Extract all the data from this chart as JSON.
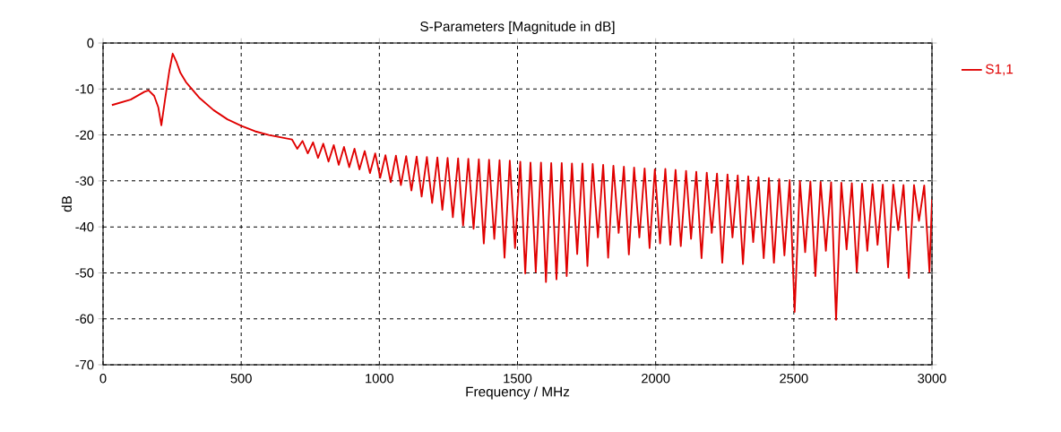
{
  "chart_data": {
    "type": "line",
    "title": "S-Parameters [Magnitude in dB]",
    "xlabel": "Frequency / MHz",
    "ylabel": "dB",
    "x": [
      32,
      100,
      150,
      165,
      185,
      200,
      211,
      225,
      240,
      252,
      265,
      280,
      300,
      350,
      400,
      450,
      500,
      550,
      600,
      650,
      684,
      703,
      722,
      741,
      760,
      778,
      797,
      816,
      835,
      853,
      872,
      891,
      910,
      928,
      947,
      966,
      985,
      1003,
      1022,
      1041,
      1060,
      1078,
      1097,
      1116,
      1135,
      1153,
      1172,
      1191,
      1210,
      1228,
      1247,
      1266,
      1285,
      1303,
      1322,
      1341,
      1360,
      1378,
      1397,
      1416,
      1435,
      1453,
      1472,
      1491,
      1510,
      1528,
      1547,
      1566,
      1585,
      1603,
      1622,
      1641,
      1660,
      1678,
      1697,
      1716,
      1735,
      1753,
      1772,
      1791,
      1810,
      1828,
      1847,
      1866,
      1885,
      1903,
      1922,
      1941,
      1960,
      1978,
      1997,
      2016,
      2035,
      2053,
      2072,
      2091,
      2110,
      2128,
      2147,
      2166,
      2185,
      2203,
      2222,
      2241,
      2260,
      2278,
      2297,
      2316,
      2335,
      2353,
      2372,
      2391,
      2410,
      2428,
      2447,
      2466,
      2485,
      2503,
      2522,
      2541,
      2560,
      2578,
      2597,
      2616,
      2635,
      2653,
      2672,
      2691,
      2710,
      2728,
      2747,
      2766,
      2785,
      2803,
      2822,
      2841,
      2860,
      2878,
      2897,
      2916,
      2935,
      2953,
      2972,
      2991,
      3000
    ],
    "series": [
      {
        "name": "S1,1",
        "color": "#e00000",
        "values": [
          -13.5,
          -12.3,
          -10.6,
          -10.3,
          -11.5,
          -14,
          -17.9,
          -12,
          -6,
          -2.3,
          -4,
          -6.5,
          -8.5,
          -12,
          -14.6,
          -16.6,
          -18,
          -19.2,
          -20,
          -20.6,
          -21,
          -23,
          -21.3,
          -24,
          -21.6,
          -25,
          -21.9,
          -25.8,
          -22.2,
          -26.5,
          -22.6,
          -27,
          -23,
          -27.5,
          -23.5,
          -28.3,
          -24,
          -29.3,
          -24.4,
          -30.3,
          -24.5,
          -30.9,
          -24.6,
          -32.1,
          -24.7,
          -33.4,
          -24.8,
          -34.8,
          -24.9,
          -36.3,
          -25,
          -37.9,
          -25.1,
          -39.7,
          -25.2,
          -40.4,
          -25.3,
          -43.6,
          -25.4,
          -42.6,
          -25.5,
          -46.7,
          -25.6,
          -44.6,
          -25.8,
          -50.1,
          -26,
          -49.8,
          -26,
          -52,
          -26.1,
          -51.4,
          -26.1,
          -50.7,
          -26.2,
          -45.9,
          -26.2,
          -48.5,
          -26.3,
          -42.3,
          -26.5,
          -46.7,
          -26.7,
          -41.3,
          -26.9,
          -46,
          -27.1,
          -42.3,
          -27.3,
          -44.6,
          -27.5,
          -43.6,
          -27.4,
          -43.9,
          -27.6,
          -44.2,
          -27.8,
          -42.6,
          -28,
          -46.8,
          -28.2,
          -41.3,
          -28.4,
          -47.8,
          -28.6,
          -42.3,
          -28.8,
          -48.1,
          -29,
          -43.3,
          -29.2,
          -46.8,
          -29.4,
          -47.8,
          -29.6,
          -46.2,
          -29.8,
          -58.5,
          -30,
          -45.5,
          -30.1,
          -50.7,
          -30.2,
          -45.2,
          -30.3,
          -60.2,
          -30.4,
          -44.9,
          -30.5,
          -49.8,
          -30.6,
          -45.2,
          -30.7,
          -43.9,
          -30.8,
          -48.8,
          -30.8,
          -40.7,
          -30.9,
          -51.1,
          -30.9,
          -38.7,
          -31,
          -49.8,
          -34
        ]
      }
    ],
    "xlim": [
      0,
      3000
    ],
    "ylim": [
      -70,
      0
    ],
    "xticks": [
      0,
      500,
      1000,
      1500,
      2000,
      2500,
      3000
    ],
    "yticks": [
      -70,
      -60,
      -50,
      -40,
      -30,
      -20,
      -10,
      0
    ],
    "grid": true,
    "legend": "top right"
  }
}
